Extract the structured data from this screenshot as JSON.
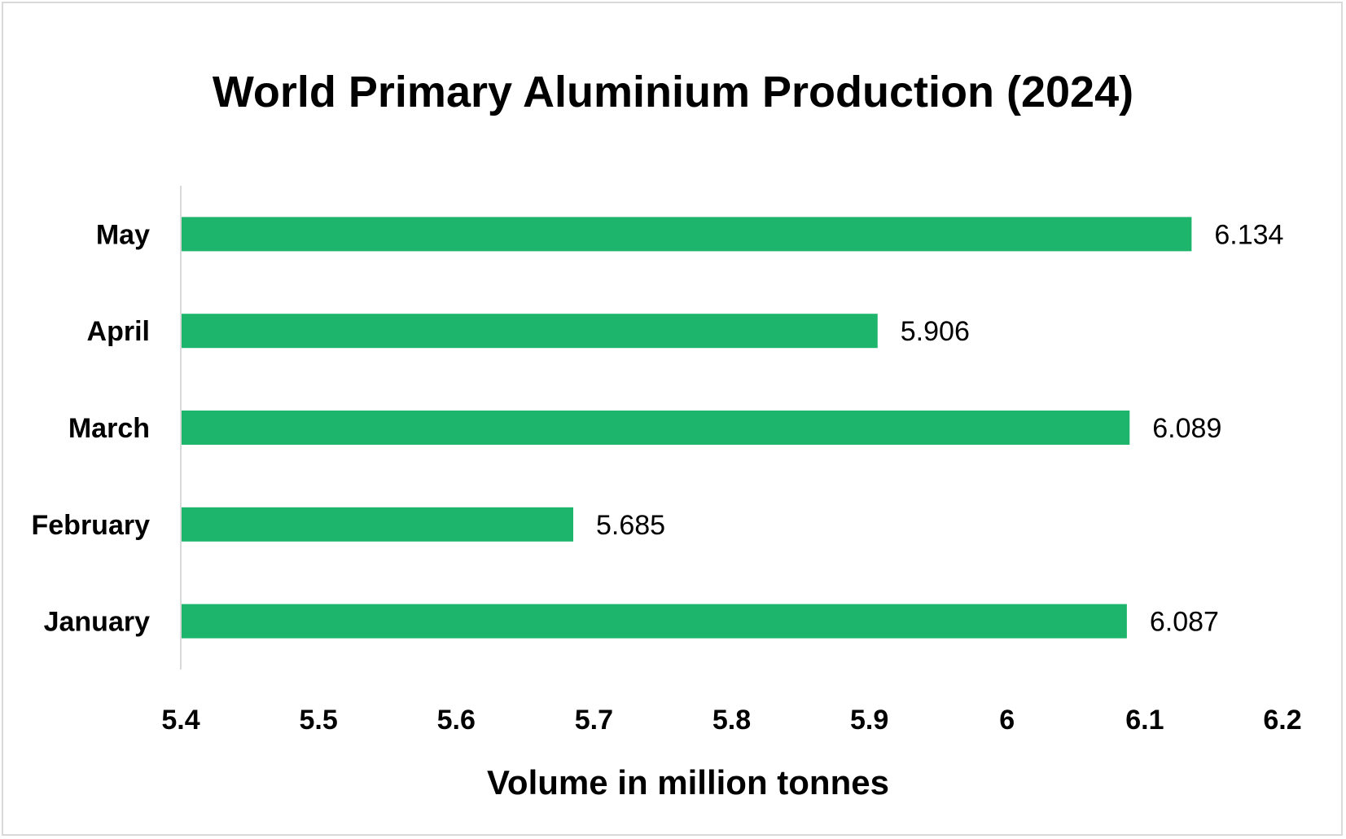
{
  "chart_data": {
    "type": "bar",
    "orientation": "horizontal",
    "title": "World Primary Aluminium Production (2024)",
    "xlabel": "Volume in million tonnes",
    "ylabel": "",
    "categories": [
      "January",
      "February",
      "March",
      "April",
      "May"
    ],
    "values": [
      6.087,
      5.685,
      6.089,
      5.906,
      6.134
    ],
    "value_labels": [
      "6.087",
      "5.685",
      "6.089",
      "5.906",
      "6.134"
    ],
    "xlim": [
      5.4,
      6.2
    ],
    "x_ticks": [
      5.4,
      5.5,
      5.6,
      5.7,
      5.8,
      5.9,
      6,
      6.1,
      6.2
    ],
    "x_tick_labels": [
      "5.4",
      "5.5",
      "5.6",
      "5.7",
      "5.8",
      "5.9",
      "6",
      "6.1",
      "6.2"
    ],
    "grid": false,
    "legend": "none",
    "bar_color": "#1db56b",
    "axis_color": "#d9d9d9"
  }
}
